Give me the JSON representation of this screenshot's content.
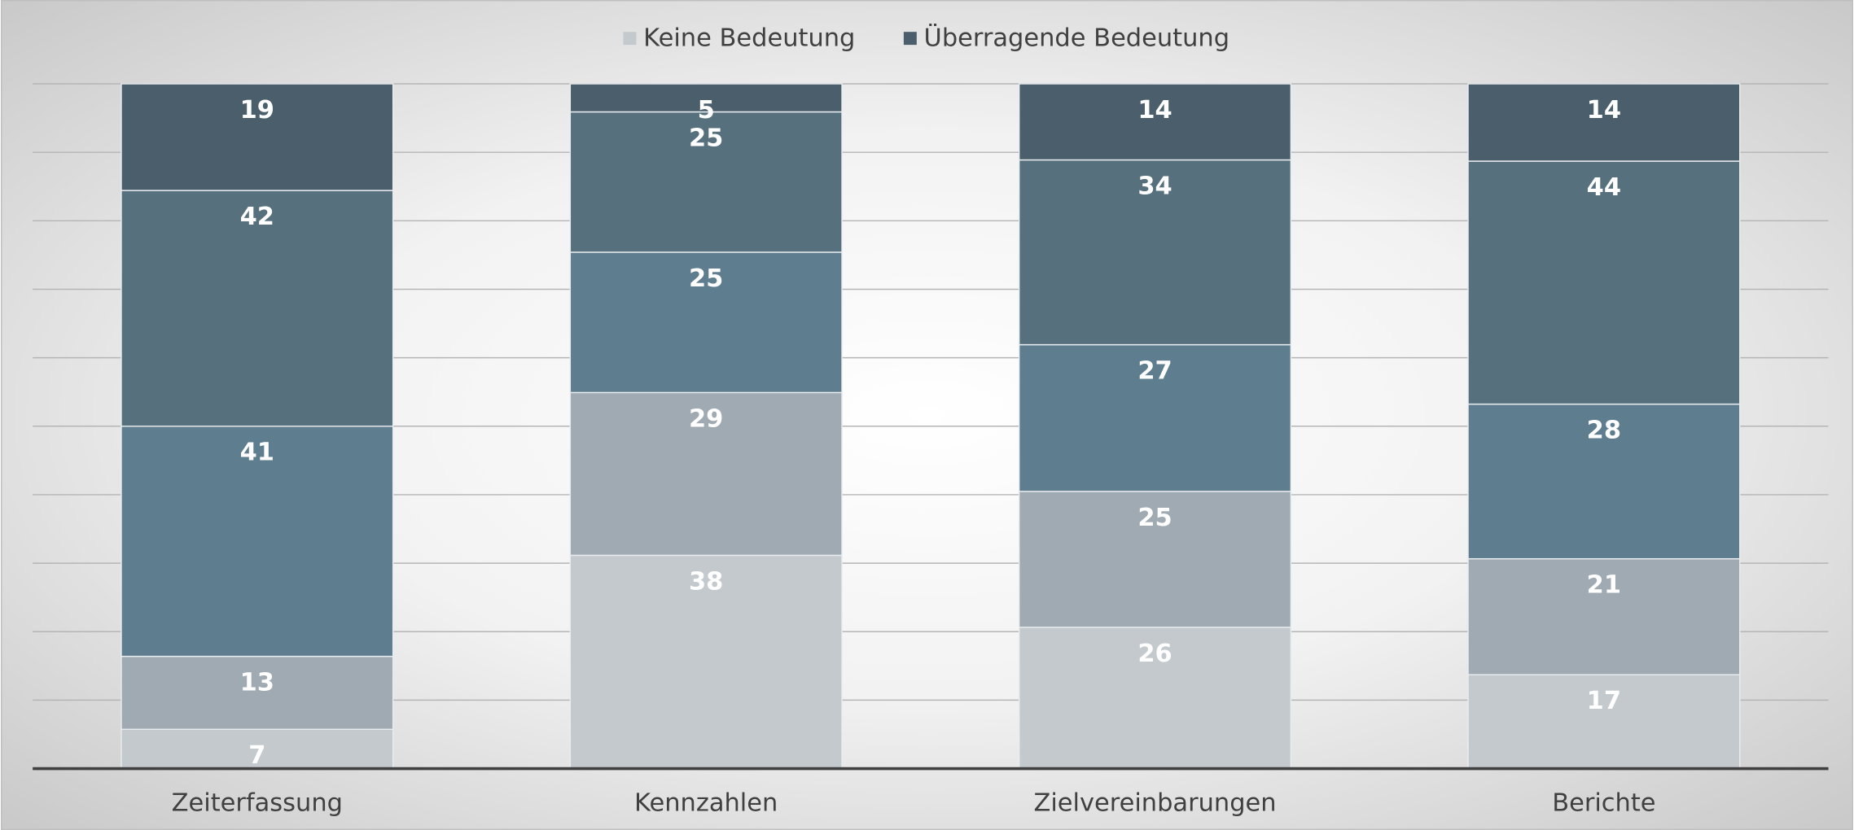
{
  "chart_data": {
    "type": "bar",
    "stacking": "percent",
    "categories": [
      "Zeiterfassung",
      "Kennzahlen",
      "Zielvereinbarungen",
      "Berichte"
    ],
    "series": [
      {
        "name": "Keine Bedeutung",
        "color": "#c4c9cd",
        "values": [
          7,
          38,
          26,
          17
        ]
      },
      {
        "color": "#a0aab2",
        "values": [
          13,
          29,
          25,
          21
        ]
      },
      {
        "color": "#5e7d8f",
        "values": [
          41,
          25,
          27,
          28
        ]
      },
      {
        "color": "#56707e",
        "values": [
          42,
          25,
          34,
          44
        ]
      },
      {
        "name": "Überragende Bedeutung",
        "color": "#4a5f6b",
        "values": [
          19,
          5,
          14,
          14
        ]
      }
    ],
    "ylim": [
      0,
      100
    ],
    "yticks": [
      0,
      10,
      20,
      30,
      40,
      50,
      60,
      70,
      80,
      90,
      100
    ],
    "grid": true,
    "legend": "top"
  }
}
